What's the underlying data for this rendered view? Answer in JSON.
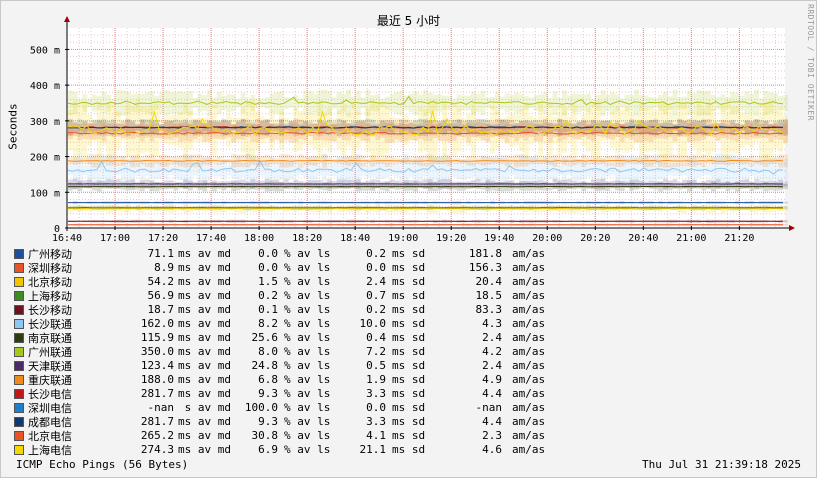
{
  "title": "最近 5 小时",
  "ylabel": "Seconds",
  "watermark": "RRDTOOL / TOBI OETIKER",
  "footer": {
    "left": "ICMP Echo Pings (56 Bytes)",
    "right": "Thu Jul 31 21:39:18 2025"
  },
  "chart_data": {
    "type": "line",
    "title": "最近 5 小时",
    "ylabel": "Seconds",
    "xlabel": "",
    "x_ticks": [
      "16:40",
      "17:00",
      "17:20",
      "17:40",
      "18:00",
      "18:20",
      "18:40",
      "19:00",
      "19:20",
      "19:40",
      "20:00",
      "20:20",
      "20:40",
      "21:00",
      "21:20"
    ],
    "y_ticks": [
      "0",
      "100 m",
      "200 m",
      "300 m",
      "400 m",
      "500 m"
    ],
    "ylim": [
      0,
      560
    ],
    "grid": true,
    "x_range": [
      "16:40",
      "21:39"
    ],
    "series": [
      {
        "name": "广州移动",
        "color": "#1f4e9a",
        "avg": 71.1,
        "loss_pct": 0.0,
        "sd": 0.2,
        "amas": 181.8
      },
      {
        "name": "深圳移动",
        "color": "#e8532a",
        "avg": 8.9,
        "loss_pct": 0.0,
        "sd": 0.0,
        "amas": 156.3
      },
      {
        "name": "北京移动",
        "color": "#f5c400",
        "avg": 54.2,
        "loss_pct": 1.5,
        "sd": 2.4,
        "amas": 20.4
      },
      {
        "name": "上海移动",
        "color": "#3e8e1f",
        "avg": 56.9,
        "loss_pct": 0.2,
        "sd": 0.7,
        "amas": 18.5
      },
      {
        "name": "长沙移动",
        "color": "#6e1220",
        "avg": 18.7,
        "loss_pct": 0.1,
        "sd": 0.2,
        "amas": 83.3
      },
      {
        "name": "长沙联通",
        "color": "#8ec8f2",
        "avg": 162.0,
        "loss_pct": 8.2,
        "sd": 10.0,
        "amas": 4.3
      },
      {
        "name": "南京联通",
        "color": "#2f3b12",
        "avg": 115.9,
        "loss_pct": 25.6,
        "sd": 0.4,
        "amas": 2.4
      },
      {
        "name": "广州联通",
        "color": "#a6c81e",
        "avg": 350.0,
        "loss_pct": 8.0,
        "sd": 7.2,
        "amas": 4.2
      },
      {
        "name": "天津联通",
        "color": "#4a2a6a",
        "avg": 123.4,
        "loss_pct": 24.8,
        "sd": 0.5,
        "amas": 2.4
      },
      {
        "name": "重庆联通",
        "color": "#f08a1c",
        "avg": 188.0,
        "loss_pct": 6.8,
        "sd": 1.9,
        "amas": 4.9
      },
      {
        "name": "长沙电信",
        "color": "#c01818",
        "avg": 281.7,
        "loss_pct": 9.3,
        "sd": 3.3,
        "amas": 4.4
      },
      {
        "name": "深圳电信",
        "color": "#1f7fc8",
        "avg": "-nan",
        "loss_pct": 100.0,
        "sd": 0.0,
        "amas": "-nan"
      },
      {
        "name": "成都电信",
        "color": "#12386e",
        "avg": 281.7,
        "loss_pct": 9.3,
        "sd": 3.3,
        "amas": 4.4
      },
      {
        "name": "北京电信",
        "color": "#e8532a",
        "avg": 265.2,
        "loss_pct": 30.8,
        "sd": 4.1,
        "amas": 2.3
      },
      {
        "name": "上海电信",
        "color": "#f5d800",
        "avg": 274.3,
        "loss_pct": 6.9,
        "sd": 21.1,
        "amas": 4.6
      }
    ]
  },
  "legend_rows": [
    {
      "name": "广州移动",
      "avg": "71.1",
      "avg_unit": "ms",
      "loss": "0.0",
      "sd": "0.2",
      "amas": "181.8"
    },
    {
      "name": "深圳移动",
      "avg": "8.9",
      "avg_unit": "ms",
      "loss": "0.0",
      "sd": "0.0",
      "amas": "156.3"
    },
    {
      "name": "北京移动",
      "avg": "54.2",
      "avg_unit": "ms",
      "loss": "1.5",
      "sd": "2.4",
      "amas": "20.4"
    },
    {
      "name": "上海移动",
      "avg": "56.9",
      "avg_unit": "ms",
      "loss": "0.2",
      "sd": "0.7",
      "amas": "18.5"
    },
    {
      "name": "长沙移动",
      "avg": "18.7",
      "avg_unit": "ms",
      "loss": "0.1",
      "sd": "0.2",
      "amas": "83.3"
    },
    {
      "name": "长沙联通",
      "avg": "162.0",
      "avg_unit": "ms",
      "loss": "8.2",
      "sd": "10.0",
      "amas": "4.3"
    },
    {
      "name": "南京联通",
      "avg": "115.9",
      "avg_unit": "ms",
      "loss": "25.6",
      "sd": "0.4",
      "amas": "2.4"
    },
    {
      "name": "广州联通",
      "avg": "350.0",
      "avg_unit": "ms",
      "loss": "8.0",
      "sd": "7.2",
      "amas": "4.2"
    },
    {
      "name": "天津联通",
      "avg": "123.4",
      "avg_unit": "ms",
      "loss": "24.8",
      "sd": "0.5",
      "amas": "2.4"
    },
    {
      "name": "重庆联通",
      "avg": "188.0",
      "avg_unit": "ms",
      "loss": "6.8",
      "sd": "1.9",
      "amas": "4.9"
    },
    {
      "name": "长沙电信",
      "avg": "281.7",
      "avg_unit": "ms",
      "loss": "9.3",
      "sd": "3.3",
      "amas": "4.4"
    },
    {
      "name": "深圳电信",
      "avg": "-nan",
      "avg_unit": " s",
      "loss": "100.0",
      "sd": "0.0",
      "amas": "-nan"
    },
    {
      "name": "成都电信",
      "avg": "281.7",
      "avg_unit": "ms",
      "loss": "9.3",
      "sd": "3.3",
      "amas": "4.4"
    },
    {
      "name": "北京电信",
      "avg": "265.2",
      "avg_unit": "ms",
      "loss": "30.8",
      "sd": "4.1",
      "amas": "2.3"
    },
    {
      "name": "上海电信",
      "avg": "274.3",
      "avg_unit": "ms",
      "loss": "6.9",
      "sd": "21.1",
      "amas": "4.6"
    }
  ],
  "legend_labels": {
    "av_md": "av md",
    "av_ls": "% av ls",
    "sd": "ms sd",
    "amas": "am/as"
  }
}
